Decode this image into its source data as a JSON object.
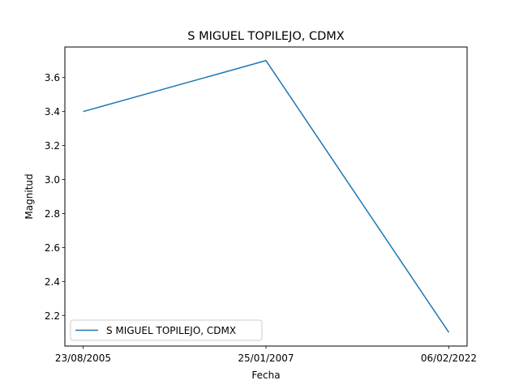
{
  "chart_data": {
    "type": "line",
    "title": "S MIGUEL TOPILEJO, CDMX",
    "xlabel": "Fecha",
    "ylabel": "Magnitud",
    "categories": [
      "23/08/2005",
      "25/01/2007",
      "06/02/2022"
    ],
    "series": [
      {
        "name": "S MIGUEL TOPILEJO, CDMX",
        "values": [
          3.4,
          3.7,
          2.1
        ],
        "color": "#1f77b4"
      }
    ],
    "yticks": [
      2.2,
      2.4,
      2.6,
      2.8,
      3.0,
      3.2,
      3.4,
      3.6
    ],
    "ylim": [
      2.02,
      3.78
    ],
    "grid": false,
    "legend": "lower-left"
  }
}
